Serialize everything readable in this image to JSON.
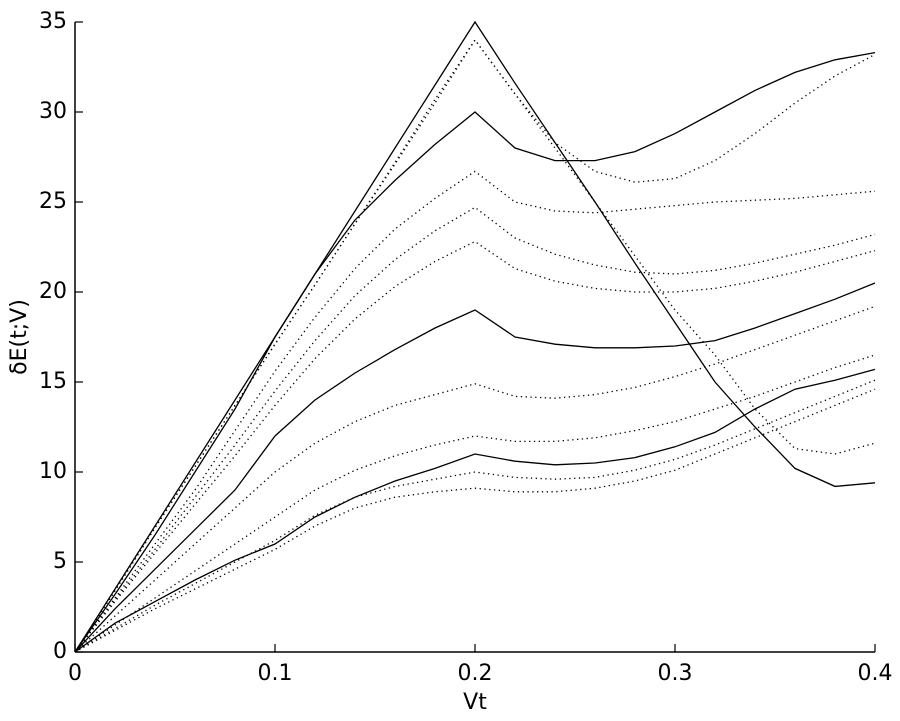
{
  "chart_data": {
    "type": "line",
    "x_label": "Vt",
    "y_label": "δE(t;V)",
    "x": [
      0,
      0.02,
      0.04,
      0.06,
      0.08,
      0.1,
      0.12,
      0.14,
      0.16,
      0.18,
      0.2,
      0.22,
      0.24,
      0.26,
      0.28,
      0.3,
      0.32,
      0.34,
      0.36,
      0.38,
      0.4
    ],
    "xlim": [
      0,
      0.4
    ],
    "xticks": [
      0,
      0.1,
      0.2,
      0.3,
      0.4
    ],
    "ylim": [
      0,
      35
    ],
    "yticks": [
      0,
      5,
      10,
      15,
      20,
      25,
      30,
      35
    ],
    "series": [
      {
        "color": "#000000",
        "style": "solid",
        "values": [
          0,
          3.5,
          7,
          10.5,
          14,
          17.5,
          21,
          24.5,
          28,
          31.5,
          35,
          31.6,
          28.3,
          25,
          21.6,
          18.3,
          15,
          12.5,
          10.2,
          9.2,
          9.4
        ]
      },
      {
        "color": "#000000",
        "style": "solid",
        "values": [
          0,
          3.2,
          6.5,
          10,
          13.5,
          17.5,
          21,
          24,
          26.2,
          28.2,
          30,
          28,
          27.3,
          27.3,
          27.8,
          28.8,
          30,
          31.2,
          32.2,
          32.9,
          33.3
        ]
      },
      {
        "color": "#000000",
        "style": "solid",
        "values": [
          0,
          2.4,
          4.6,
          6.8,
          9,
          12,
          14,
          15.5,
          16.8,
          18,
          19,
          17.5,
          17.1,
          16.9,
          16.9,
          17,
          17.3,
          18,
          18.8,
          19.6,
          20.5
        ]
      },
      {
        "color": "#000000",
        "style": "solid",
        "values": [
          0,
          1.6,
          2.8,
          4,
          5.1,
          6,
          7.5,
          8.6,
          9.5,
          10.2,
          11,
          10.6,
          10.4,
          10.5,
          10.8,
          11.4,
          12.2,
          13.5,
          14.6,
          15.1,
          15.7
        ]
      },
      {
        "color": "#000000",
        "style": "dotted",
        "values": [
          0,
          3.4,
          6.9,
          10.3,
          13.7,
          17.1,
          20.4,
          23.8,
          27.1,
          30.5,
          34,
          31,
          28.3,
          26.7,
          26.1,
          26.3,
          27.3,
          28.8,
          30.5,
          32,
          33.2
        ]
      },
      {
        "color": "#000000",
        "style": "dotted",
        "values": [
          0,
          3.4,
          6.9,
          10.3,
          13.7,
          17.1,
          20.4,
          23.8,
          27.2,
          30.7,
          34,
          31,
          28,
          25,
          22,
          19,
          16.5,
          13.5,
          11.3,
          11,
          11.6
        ]
      },
      {
        "color": "#000000",
        "style": "dotted",
        "values": [
          0,
          3,
          6,
          9,
          12.3,
          15.6,
          18.6,
          21.3,
          23.5,
          25.2,
          26.7,
          25,
          24.5,
          24.4,
          24.6,
          24.8,
          25,
          25.1,
          25.2,
          25.4,
          25.6
        ]
      },
      {
        "color": "#000000",
        "style": "dotted",
        "values": [
          0,
          2.9,
          5.7,
          8.6,
          11.5,
          14.5,
          17.3,
          19.8,
          21.8,
          23.4,
          24.7,
          23,
          22.1,
          21.5,
          21.1,
          21,
          21.2,
          21.6,
          22.1,
          22.6,
          23.2
        ]
      },
      {
        "color": "#000000",
        "style": "dotted",
        "values": [
          0,
          2.8,
          5.5,
          8.2,
          10.9,
          13.7,
          16.3,
          18.5,
          20.3,
          21.7,
          22.8,
          21.3,
          20.6,
          20.2,
          20,
          20,
          20.2,
          20.6,
          21.1,
          21.7,
          22.3
        ]
      },
      {
        "color": "#000000",
        "style": "dotted",
        "values": [
          0,
          2,
          4,
          6,
          8,
          10,
          11.6,
          12.8,
          13.7,
          14.3,
          14.9,
          14.2,
          14.1,
          14.3,
          14.7,
          15.3,
          16,
          16.8,
          17.6,
          18.4,
          19.2
        ]
      },
      {
        "color": "#000000",
        "style": "dotted",
        "values": [
          0,
          1.5,
          3,
          4.5,
          6,
          7.5,
          9,
          10.1,
          10.9,
          11.5,
          12,
          11.7,
          11.7,
          11.9,
          12.3,
          12.8,
          13.5,
          14.2,
          15,
          15.8,
          16.5
        ]
      },
      {
        "color": "#000000",
        "style": "dotted",
        "values": [
          0,
          1.3,
          2.6,
          3.8,
          5,
          6.2,
          7.6,
          8.6,
          9.2,
          9.6,
          10,
          9.7,
          9.6,
          9.7,
          10.1,
          10.7,
          11.5,
          12.4,
          13.3,
          14.2,
          15.1
        ]
      },
      {
        "color": "#000000",
        "style": "dotted",
        "values": [
          0,
          1.2,
          2.4,
          3.5,
          4.6,
          5.7,
          7,
          8,
          8.6,
          8.9,
          9.1,
          8.9,
          8.9,
          9.1,
          9.5,
          10.1,
          11,
          11.9,
          12.8,
          13.7,
          14.6
        ]
      }
    ]
  }
}
